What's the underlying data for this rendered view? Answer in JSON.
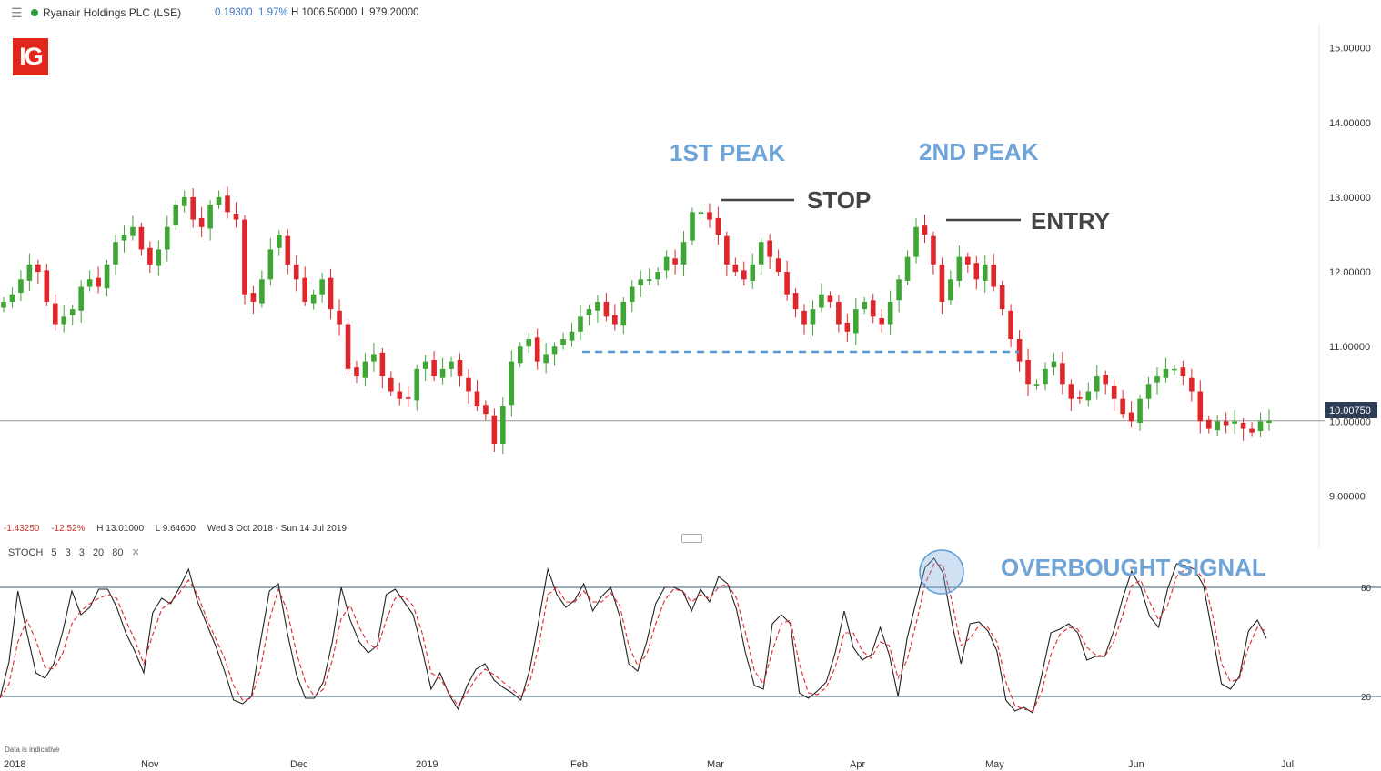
{
  "header": {
    "menu_icon": "menu-icon",
    "instrument": "Ryanair Holdings PLC (LSE)",
    "change": "0.19300",
    "change_pct": "1.97%",
    "high": "H 1006.50000",
    "low": "L 979.20000",
    "status_color": "#2e9e3e"
  },
  "logo": {
    "text": "IG",
    "color": "#e1261c"
  },
  "stats": {
    "change": "-1.43250",
    "change_pct": "-12.52%",
    "high": "H 13.01000",
    "low": "L 9.64600",
    "range": "Wed 3 Oct 2018 - Sun 14 Jul 2019"
  },
  "stoch": {
    "name": "STOCH",
    "params": [
      "5",
      "3",
      "3",
      "20",
      "80"
    ],
    "close_icon": "close-icon"
  },
  "disclaimer": "Data is indicative",
  "annotations": {
    "peak1": "1ST PEAK",
    "peak2": "2ND PEAK",
    "stop": "STOP",
    "entry": "ENTRY",
    "overbought": "OVERBOUGHT SIGNAL"
  },
  "colors": {
    "up": "#3fa535",
    "down": "#e0262b",
    "annotation_blue": "#6fa4d8",
    "annotation_dark": "#444444"
  },
  "chart_data": [
    {
      "type": "candlestick",
      "title": "Ryanair Holdings PLC (LSE)",
      "ylim": [
        8.3,
        15.3
      ],
      "y_ticks": [
        "15.00000",
        "14.00000",
        "13.00000",
        "12.00000",
        "11.00000",
        "10.00000",
        "9.00000"
      ],
      "current_price": "10.00750",
      "x_tick_labels": [
        "2018",
        "Nov",
        "Dec",
        "2019",
        "Feb",
        "Mar",
        "Apr",
        "May",
        "Jun",
        "Jul"
      ],
      "neckline": 10.93,
      "close_series": [
        11.6,
        11.7,
        11.9,
        12.1,
        12.0,
        11.6,
        11.3,
        11.4,
        11.5,
        11.8,
        11.9,
        11.8,
        12.1,
        12.4,
        12.5,
        12.6,
        12.3,
        12.1,
        12.3,
        12.6,
        12.9,
        13.0,
        12.7,
        12.6,
        12.9,
        13.0,
        12.8,
        12.7,
        11.7,
        11.6,
        11.9,
        12.3,
        12.5,
        12.1,
        11.9,
        11.6,
        11.7,
        11.9,
        11.5,
        11.3,
        10.7,
        10.6,
        10.8,
        10.9,
        10.6,
        10.4,
        10.3,
        10.3,
        10.7,
        10.8,
        10.6,
        10.7,
        10.8,
        10.6,
        10.4,
        10.2,
        10.1,
        9.7,
        10.2,
        10.8,
        11.0,
        11.1,
        10.8,
        10.9,
        11.0,
        11.1,
        11.2,
        11.4,
        11.5,
        11.6,
        11.4,
        11.3,
        11.6,
        11.8,
        11.9,
        11.9,
        12.0,
        12.2,
        12.1,
        12.4,
        12.8,
        12.8,
        12.7,
        12.5,
        12.1,
        12.0,
        11.9,
        12.1,
        12.4,
        12.2,
        12.0,
        11.7,
        11.5,
        11.3,
        11.5,
        11.7,
        11.6,
        11.3,
        11.2,
        11.5,
        11.6,
        11.4,
        11.3,
        11.6,
        11.9,
        12.2,
        12.6,
        12.5,
        12.1,
        11.6,
        11.9,
        12.2,
        12.1,
        11.9,
        12.1,
        11.8,
        11.5,
        11.1,
        10.8,
        10.5,
        10.5,
        10.7,
        10.8,
        10.5,
        10.3,
        10.3,
        10.4,
        10.6,
        10.5,
        10.3,
        10.1,
        10.0,
        10.3,
        10.5,
        10.6,
        10.7,
        10.7,
        10.6,
        10.4,
        10.0,
        9.9,
        10.0,
        9.95,
        10.0,
        9.9,
        9.85,
        10.0,
        10.01
      ]
    },
    {
      "type": "line",
      "title": "STOCH 5 3 3 20 80",
      "ylim": [
        0,
        100
      ],
      "y_ticks": [
        "80",
        "20"
      ],
      "levels": [
        80,
        20
      ],
      "series": [
        {
          "name": "%K",
          "values": [
            19,
            39,
            78,
            55,
            33,
            30,
            38,
            56,
            78,
            65,
            69,
            79,
            79,
            69,
            55,
            45,
            33,
            66,
            74,
            71,
            80,
            90,
            72,
            60,
            48,
            34,
            18,
            16,
            20,
            50,
            78,
            82,
            55,
            32,
            19,
            19,
            28,
            50,
            80,
            62,
            50,
            44,
            48,
            76,
            79,
            72,
            65,
            46,
            24,
            33,
            21,
            13,
            26,
            35,
            38,
            29,
            25,
            22,
            18,
            35,
            62,
            90,
            76,
            69,
            73,
            82,
            67,
            75,
            80,
            64,
            38,
            34,
            50,
            71,
            80,
            80,
            78,
            67,
            79,
            72,
            86,
            82,
            68,
            44,
            26,
            24,
            60,
            65,
            60,
            22,
            19,
            23,
            28,
            44,
            67,
            47,
            40,
            43,
            58,
            43,
            20,
            52,
            72,
            91,
            96,
            88,
            60,
            38,
            60,
            61,
            56,
            45,
            18,
            12,
            14,
            11,
            32,
            55,
            57,
            60,
            55,
            40,
            42,
            42,
            56,
            74,
            89,
            80,
            64,
            58,
            79,
            93,
            92,
            90,
            81,
            54,
            27,
            24,
            31,
            56,
            62,
            52
          ]
        },
        {
          "name": "%D",
          "values": [
            19,
            27,
            50,
            62,
            51,
            36,
            35,
            44,
            60,
            67,
            71,
            74,
            76,
            74,
            62,
            51,
            38,
            54,
            68,
            72,
            77,
            84,
            76,
            63,
            52,
            41,
            26,
            18,
            19,
            35,
            62,
            79,
            67,
            44,
            28,
            20,
            24,
            40,
            63,
            70,
            58,
            49,
            46,
            62,
            74,
            75,
            70,
            55,
            33,
            30,
            22,
            15,
            22,
            30,
            35,
            32,
            28,
            24,
            20,
            28,
            48,
            76,
            80,
            72,
            72,
            78,
            72,
            72,
            77,
            70,
            48,
            37,
            43,
            60,
            73,
            79,
            78,
            72,
            76,
            74,
            80,
            82,
            74,
            55,
            34,
            27,
            45,
            60,
            62,
            38,
            22,
            21,
            25,
            36,
            55,
            55,
            45,
            41,
            50,
            48,
            30,
            40,
            60,
            82,
            93,
            92,
            72,
            48,
            52,
            59,
            58,
            50,
            28,
            15,
            13,
            12,
            23,
            43,
            54,
            58,
            57,
            47,
            43,
            42,
            50,
            65,
            81,
            84,
            72,
            62,
            70,
            86,
            90,
            90,
            85,
            65,
            38,
            28,
            30,
            47,
            58,
            56
          ]
        }
      ],
      "x_tick_labels": [
        "2018",
        "Nov",
        "Dec",
        "2019",
        "Feb",
        "Mar",
        "Apr",
        "May",
        "Jun",
        "Jul"
      ]
    }
  ]
}
